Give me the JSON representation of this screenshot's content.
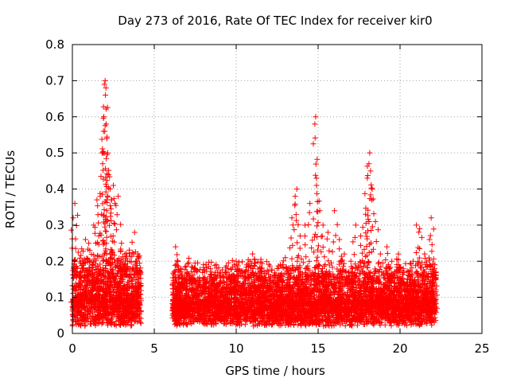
{
  "chart_data": {
    "type": "scatter",
    "title": "Day 273 of 2016, Rate Of TEC Index for receiver kir0",
    "xlabel": "GPS time / hours",
    "ylabel": "ROTI / TECUs",
    "xlim": [
      0,
      25
    ],
    "ylim": [
      0,
      0.8
    ],
    "x_ticks": [
      "0",
      "5",
      "10",
      "15",
      "20",
      "25"
    ],
    "y_ticks": [
      "0",
      "0.1",
      "0.2",
      "0.3",
      "0.4",
      "0.5",
      "0.6",
      "0.7",
      "0.8"
    ],
    "grid": true,
    "marker": "+",
    "color": "#ff0000",
    "series": [
      {
        "name": "kir0",
        "points": [
          [
            0.05,
            0.32
          ],
          [
            0.15,
            0.36
          ],
          [
            0.3,
            0.18
          ],
          [
            0.5,
            0.12
          ],
          [
            0.8,
            0.26
          ],
          [
            1.0,
            0.25
          ],
          [
            1.3,
            0.3
          ],
          [
            1.5,
            0.37
          ],
          [
            1.7,
            0.38
          ],
          [
            1.85,
            0.47
          ],
          [
            1.9,
            0.56
          ],
          [
            1.92,
            0.6
          ],
          [
            1.95,
            0.69
          ],
          [
            2.0,
            0.7
          ],
          [
            2.02,
            0.66
          ],
          [
            2.05,
            0.68
          ],
          [
            2.1,
            0.54
          ],
          [
            2.15,
            0.5
          ],
          [
            2.2,
            0.44
          ],
          [
            2.3,
            0.4
          ],
          [
            2.4,
            0.37
          ],
          [
            2.5,
            0.41
          ],
          [
            2.6,
            0.36
          ],
          [
            2.8,
            0.38
          ],
          [
            3.0,
            0.25
          ],
          [
            3.2,
            0.22
          ],
          [
            3.5,
            0.2
          ],
          [
            3.8,
            0.28
          ],
          [
            4.0,
            0.22
          ],
          [
            6.3,
            0.24
          ],
          [
            6.5,
            0.14
          ],
          [
            7.0,
            0.16
          ],
          [
            7.5,
            0.18
          ],
          [
            8.0,
            0.19
          ],
          [
            8.5,
            0.17
          ],
          [
            9.0,
            0.16
          ],
          [
            9.5,
            0.18
          ],
          [
            10.0,
            0.2
          ],
          [
            10.5,
            0.16
          ],
          [
            11.0,
            0.22
          ],
          [
            11.5,
            0.18
          ],
          [
            12.0,
            0.15
          ],
          [
            12.5,
            0.18
          ],
          [
            13.0,
            0.21
          ],
          [
            13.4,
            0.32
          ],
          [
            13.6,
            0.38
          ],
          [
            13.7,
            0.4
          ],
          [
            13.9,
            0.27
          ],
          [
            14.2,
            0.3
          ],
          [
            14.5,
            0.36
          ],
          [
            14.8,
            0.58
          ],
          [
            14.85,
            0.6
          ],
          [
            14.9,
            0.41
          ],
          [
            15.1,
            0.34
          ],
          [
            15.3,
            0.3
          ],
          [
            15.6,
            0.28
          ],
          [
            16.0,
            0.34
          ],
          [
            16.3,
            0.26
          ],
          [
            16.6,
            0.22
          ],
          [
            17.0,
            0.2
          ],
          [
            17.3,
            0.3
          ],
          [
            17.6,
            0.27
          ],
          [
            17.9,
            0.33
          ],
          [
            18.0,
            0.43
          ],
          [
            18.1,
            0.47
          ],
          [
            18.15,
            0.5
          ],
          [
            18.2,
            0.45
          ],
          [
            18.3,
            0.4
          ],
          [
            18.5,
            0.31
          ],
          [
            18.8,
            0.22
          ],
          [
            19.2,
            0.24
          ],
          [
            19.5,
            0.2
          ],
          [
            19.9,
            0.22
          ],
          [
            20.2,
            0.18
          ],
          [
            20.5,
            0.16
          ],
          [
            20.8,
            0.2
          ],
          [
            21.0,
            0.3
          ],
          [
            21.2,
            0.29
          ],
          [
            21.5,
            0.22
          ],
          [
            21.8,
            0.26
          ],
          [
            21.9,
            0.32
          ],
          [
            22.1,
            0.18
          ]
        ],
        "dense_segments": [
          {
            "x_range": [
              0.0,
              4.2
            ],
            "y_base": [
              0.02,
              0.1
            ],
            "y_spread": 0.14,
            "count": 1300
          },
          {
            "x_range": [
              6.1,
              22.2
            ],
            "y_base": [
              0.02,
              0.09
            ],
            "y_spread": 0.12,
            "count": 5200
          }
        ]
      }
    ]
  }
}
